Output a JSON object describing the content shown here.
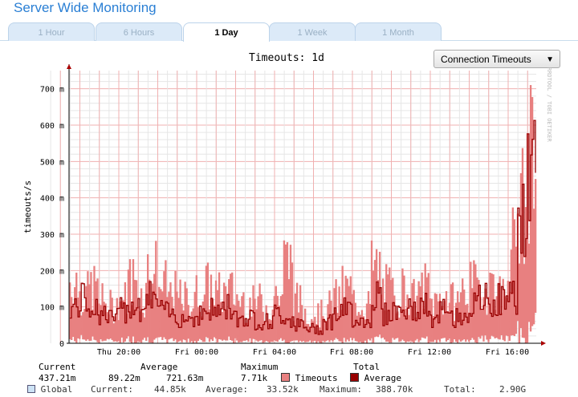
{
  "title": "Server Wide Monitoring",
  "tabs": [
    {
      "label": "1 Hour"
    },
    {
      "label": "6 Hours"
    },
    {
      "label": "1 Day",
      "active": true
    },
    {
      "label": "1 Week"
    },
    {
      "label": "1 Month"
    }
  ],
  "metric_select": {
    "value": "Connection Timeouts"
  },
  "chart_data": {
    "type": "area",
    "title": "Timeouts: 1d",
    "ylabel": "timeouts/s",
    "watermark": "RRDTOOL / TOBI OETIKER",
    "ylim": [
      0,
      750
    ],
    "y_ticks": [
      "0",
      "100 m",
      "200 m",
      "300 m",
      "400 m",
      "500 m",
      "600 m",
      "700 m"
    ],
    "y_tick_values": [
      0,
      100,
      200,
      300,
      400,
      500,
      600,
      700
    ],
    "x_ticks": [
      "Thu 20:00",
      "Fri 00:00",
      "Fri 04:00",
      "Fri 08:00",
      "Fri 12:00",
      "Fri 16:00"
    ],
    "x": [
      "Thu 17:30",
      "18:00",
      "18:30",
      "19:00",
      "19:30",
      "20:00",
      "20:30",
      "21:00",
      "21:30",
      "22:00",
      "22:30",
      "23:00",
      "23:30",
      "Fri 00:00",
      "00:30",
      "01:00",
      "01:30",
      "02:00",
      "02:30",
      "03:00",
      "03:30",
      "04:00",
      "04:30",
      "05:00",
      "05:30",
      "06:00",
      "06:30",
      "07:00",
      "07:30",
      "08:00",
      "08:30",
      "09:00",
      "09:30",
      "10:00",
      "10:30",
      "11:00",
      "11:30",
      "12:00",
      "12:30",
      "13:00",
      "13:30",
      "14:00",
      "14:30",
      "15:00",
      "15:30",
      "16:00",
      "16:30",
      "17:00"
    ],
    "series": [
      {
        "name": "Timeouts",
        "color": "#e88080",
        "unit": "m",
        "values": [
          250,
          200,
          230,
          170,
          150,
          180,
          260,
          200,
          300,
          230,
          200,
          180,
          170,
          200,
          230,
          200,
          210,
          180,
          160,
          170,
          150,
          200,
          330,
          170,
          130,
          120,
          150,
          180,
          220,
          170,
          160,
          300,
          220,
          200,
          220,
          180,
          230,
          170,
          190,
          170,
          210,
          230,
          220,
          250,
          200,
          390,
          550,
          720
        ]
      },
      {
        "name": "Average",
        "color": "#990000",
        "unit": "m",
        "values": [
          100,
          120,
          100,
          80,
          70,
          90,
          110,
          100,
          130,
          90,
          80,
          70,
          70,
          80,
          90,
          90,
          100,
          70,
          70,
          60,
          60,
          80,
          70,
          50,
          40,
          40,
          60,
          80,
          90,
          70,
          60,
          130,
          80,
          90,
          90,
          90,
          100,
          60,
          90,
          70,
          80,
          100,
          120,
          110,
          120,
          130,
          330,
          440
        ]
      }
    ],
    "grid": true
  },
  "legend": {
    "headers": [
      "Current",
      "Average",
      "Maximum",
      "Total"
    ],
    "values": [
      "437.21m",
      "89.22m",
      "721.63m",
      "7.71k"
    ],
    "series": [
      "Timeouts",
      "Average"
    ]
  },
  "global": {
    "label": "Global",
    "current_label": "Current:",
    "current": "44.85k",
    "average_label": "Average:",
    "average": "33.52k",
    "maximum_label": "Maximum:",
    "maximum": "388.70k",
    "total_label": "Total:",
    "total": "2.90G"
  }
}
